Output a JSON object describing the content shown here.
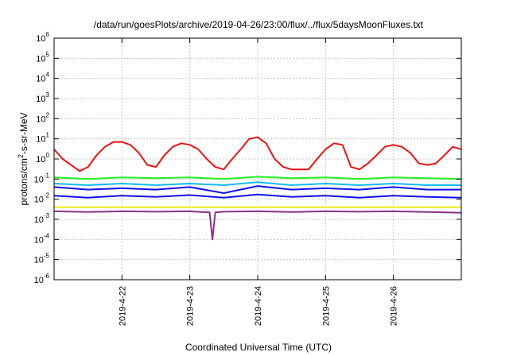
{
  "chart_data": {
    "type": "line",
    "title": "/data/run/goesPlots/archive/2019-04-26/23:00/flux/../flux/5daysMoonFluxes.txt",
    "xlabel": "Coordinated Universal Time (UTC)",
    "ylabel": "protons/cm2-s-sr-MeV",
    "ylabel_base": "protons/cm",
    "ylabel_sup": "2",
    "ylabel_rest": "-s-sr-MeV",
    "yscale": "log",
    "ylim": [
      1e-06,
      1000000.0
    ],
    "ytick_labels": [
      {
        "base": "10",
        "exp": "-6"
      },
      {
        "base": "10",
        "exp": "-5"
      },
      {
        "base": "10",
        "exp": "-4"
      },
      {
        "base": "10",
        "exp": "-3"
      },
      {
        "base": "10",
        "exp": "-2"
      },
      {
        "base": "10",
        "exp": "-1"
      },
      {
        "base": "10",
        "exp": "0"
      },
      {
        "base": "10",
        "exp": "1"
      },
      {
        "base": "10",
        "exp": "2"
      },
      {
        "base": "10",
        "exp": "3"
      },
      {
        "base": "10",
        "exp": "4"
      },
      {
        "base": "10",
        "exp": "5"
      },
      {
        "base": "10",
        "exp": "6"
      }
    ],
    "xlim": [
      "2019-04-21 00:00",
      "2019-04-27 00:00"
    ],
    "xticks": [
      "2019-4-22",
      "2019-4-23",
      "2019-4-24",
      "2019-4-25",
      "2019-4-26"
    ],
    "grid": true,
    "colors": {
      "red": "#ee1111",
      "green": "#22ee22",
      "cyan": "#11bbee",
      "blue": "#1111ee",
      "yellow": "#eeee22",
      "purple": "#883388"
    },
    "series": [
      {
        "color_key": "red",
        "x": [
          "04-21 00:00",
          "04-21 03:00",
          "04-21 06:00",
          "04-21 09:00",
          "04-21 12:00",
          "04-21 15:00",
          "04-21 18:00",
          "04-21 21:00",
          "04-22 00:00",
          "04-22 03:00",
          "04-22 06:00",
          "04-22 09:00",
          "04-22 12:00",
          "04-22 15:00",
          "04-22 18:00",
          "04-22 21:00",
          "04-23 00:00",
          "04-23 03:00",
          "04-23 06:00",
          "04-23 09:00",
          "04-23 12:00",
          "04-23 15:00",
          "04-23 18:00",
          "04-23 21:00",
          "04-24 00:00",
          "04-24 03:00",
          "04-24 06:00",
          "04-24 09:00",
          "04-24 12:00",
          "04-24 15:00",
          "04-24 18:00",
          "04-24 21:00",
          "04-25 00:00",
          "04-25 03:00",
          "04-25 06:00",
          "04-25 09:00",
          "04-25 12:00",
          "04-25 15:00",
          "04-25 18:00",
          "04-25 21:00",
          "04-26 00:00",
          "04-26 03:00",
          "04-26 06:00",
          "04-26 09:00",
          "04-26 12:00",
          "04-26 15:00",
          "04-26 18:00",
          "04-26 21:00",
          "04-27 00:00"
        ],
        "y": [
          3,
          1,
          0.5,
          0.25,
          0.4,
          1.5,
          4,
          7,
          7,
          5,
          2,
          0.5,
          0.4,
          1.5,
          4,
          6,
          5,
          3,
          1,
          0.4,
          0.3,
          1,
          3,
          10,
          12,
          6,
          1,
          0.4,
          0.3,
          0.3,
          0.3,
          1,
          3,
          6,
          5,
          0.4,
          0.3,
          0.6,
          1.5,
          4,
          5,
          4,
          2,
          0.6,
          0.5,
          0.6,
          1.5,
          4,
          3
        ]
      },
      {
        "color_key": "green",
        "x": [
          "04-21 00:00",
          "04-21 12:00",
          "04-22 00:00",
          "04-22 12:00",
          "04-23 00:00",
          "04-23 12:00",
          "04-24 00:00",
          "04-24 12:00",
          "04-25 00:00",
          "04-25 12:00",
          "04-26 00:00",
          "04-26 12:00",
          "04-27 00:00"
        ],
        "y": [
          0.12,
          0.1,
          0.12,
          0.11,
          0.12,
          0.1,
          0.13,
          0.11,
          0.12,
          0.1,
          0.12,
          0.11,
          0.1
        ]
      },
      {
        "color_key": "cyan",
        "x": [
          "04-21 00:00",
          "04-21 12:00",
          "04-22 00:00",
          "04-22 12:00",
          "04-23 00:00",
          "04-23 12:00",
          "04-24 00:00",
          "04-24 12:00",
          "04-25 00:00",
          "04-25 12:00",
          "04-26 00:00",
          "04-26 12:00",
          "04-27 00:00"
        ],
        "y": [
          0.06,
          0.05,
          0.06,
          0.05,
          0.06,
          0.05,
          0.07,
          0.05,
          0.06,
          0.05,
          0.06,
          0.05,
          0.05
        ]
      },
      {
        "color_key": "blue",
        "x": [
          "04-21 00:00",
          "04-21 12:00",
          "04-22 00:00",
          "04-22 12:00",
          "04-23 00:00",
          "04-23 12:00",
          "04-24 00:00",
          "04-24 12:00",
          "04-25 00:00",
          "04-25 12:00",
          "04-26 00:00",
          "04-26 12:00",
          "04-27 00:00"
        ],
        "y": [
          0.04,
          0.03,
          0.035,
          0.03,
          0.04,
          0.02,
          0.045,
          0.03,
          0.035,
          0.03,
          0.04,
          0.03,
          0.03
        ]
      },
      {
        "color_key": "blue",
        "x": [
          "04-21 00:00",
          "04-21 12:00",
          "04-22 00:00",
          "04-22 12:00",
          "04-23 00:00",
          "04-23 12:00",
          "04-24 00:00",
          "04-24 12:00",
          "04-25 00:00",
          "04-25 12:00",
          "04-26 00:00",
          "04-26 12:00",
          "04-27 00:00"
        ],
        "y": [
          0.015,
          0.012,
          0.015,
          0.013,
          0.016,
          0.012,
          0.017,
          0.013,
          0.015,
          0.012,
          0.015,
          0.013,
          0.012
        ]
      },
      {
        "color_key": "yellow",
        "x": [
          "04-21 00:00",
          "04-22 00:00",
          "04-23 00:00",
          "04-24 00:00",
          "04-25 00:00",
          "04-26 00:00",
          "04-27 00:00"
        ],
        "y": [
          0.004,
          0.004,
          0.004,
          0.004,
          0.004,
          0.004,
          0.004
        ]
      },
      {
        "color_key": "purple",
        "x": [
          "04-21 00:00",
          "04-21 12:00",
          "04-22 00:00",
          "04-22 12:00",
          "04-23 00:00",
          "04-23 07:00",
          "04-23 08:00",
          "04-23 09:00",
          "04-23 12:00",
          "04-24 00:00",
          "04-24 12:00",
          "04-25 00:00",
          "04-25 12:00",
          "04-26 00:00",
          "04-26 12:00",
          "04-27 00:00"
        ],
        "y": [
          0.0025,
          0.0023,
          0.0025,
          0.0024,
          0.0025,
          0.0022,
          0.0001,
          0.0022,
          0.0024,
          0.0025,
          0.0023,
          0.0025,
          0.0024,
          0.0025,
          0.0023,
          0.0021
        ]
      }
    ]
  }
}
